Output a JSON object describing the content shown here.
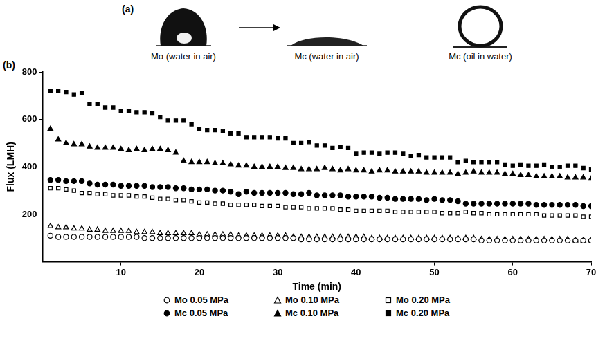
{
  "chart_data": {
    "type": "scatter",
    "x_label": "Time (min)",
    "y_label": "Flux (LMH)",
    "annotations": {
      "panel_labels": [
        "(a)",
        "(b)"
      ],
      "image_captions": [
        "Mo (water in air)",
        "Mc (water in air)",
        "Mc (oil in water)"
      ]
    },
    "xlim": [
      0,
      70
    ],
    "xticks": [
      10,
      20,
      30,
      40,
      50,
      60,
      70
    ],
    "ylim": [
      0,
      800
    ],
    "yticks": [
      200,
      400,
      600,
      800
    ],
    "grid": false,
    "legend": "bottom",
    "x": [
      1,
      2,
      3,
      4,
      5,
      6,
      7,
      8,
      9,
      10,
      11,
      12,
      13,
      14,
      15,
      16,
      17,
      18,
      19,
      20,
      21,
      22,
      23,
      24,
      25,
      26,
      27,
      28,
      29,
      30,
      31,
      32,
      33,
      34,
      35,
      36,
      37,
      38,
      39,
      40,
      41,
      42,
      43,
      44,
      45,
      46,
      47,
      48,
      49,
      50,
      51,
      52,
      53,
      54,
      55,
      56,
      57,
      58,
      59,
      60,
      61,
      62,
      63,
      64,
      65,
      66,
      67,
      68,
      69,
      70
    ],
    "series": [
      {
        "name": "Mo 0.05 MPa",
        "color": "#000000",
        "marker": "open_circle",
        "values": [
          110,
          105,
          105,
          105,
          105,
          105,
          105,
          105,
          105,
          105,
          105,
          105,
          100,
          100,
          100,
          100,
          100,
          100,
          100,
          100,
          100,
          100,
          100,
          100,
          100,
          100,
          100,
          100,
          100,
          100,
          100,
          100,
          95,
          95,
          95,
          95,
          95,
          95,
          95,
          95,
          95,
          95,
          95,
          95,
          95,
          95,
          95,
          95,
          95,
          95,
          95,
          95,
          95,
          95,
          95,
          90,
          90,
          90,
          90,
          90,
          90,
          90,
          90,
          90,
          90,
          90,
          90,
          90,
          90,
          90
        ]
      },
      {
        "name": "Mo 0.10 MPa",
        "color": "#000000",
        "marker": "open_triangle",
        "values": [
          150,
          145,
          145,
          140,
          140,
          135,
          135,
          130,
          130,
          130,
          130,
          125,
          125,
          125,
          120,
          120,
          120,
          120,
          120,
          115,
          115,
          115,
          115,
          115,
          110,
          110,
          110,
          110,
          110,
          110,
          110,
          105,
          105,
          105,
          105,
          105,
          105,
          105,
          105,
          105,
          105,
          100,
          100,
          100,
          100,
          100,
          100,
          100,
          100,
          100,
          100,
          100,
          100,
          100,
          100,
          95,
          95,
          95,
          95,
          95,
          95,
          95,
          95,
          95,
          95,
          95,
          95,
          90,
          90,
          90
        ]
      },
      {
        "name": "Mo 0.20 MPa",
        "color": "#000000",
        "marker": "open_square",
        "values": [
          310,
          310,
          305,
          300,
          290,
          290,
          285,
          285,
          280,
          280,
          280,
          275,
          275,
          270,
          265,
          265,
          260,
          260,
          255,
          250,
          250,
          245,
          245,
          240,
          240,
          240,
          240,
          235,
          235,
          235,
          230,
          230,
          230,
          225,
          225,
          225,
          225,
          220,
          220,
          215,
          215,
          215,
          215,
          215,
          210,
          210,
          210,
          210,
          210,
          210,
          205,
          205,
          205,
          210,
          205,
          205,
          200,
          200,
          200,
          200,
          200,
          200,
          200,
          195,
          195,
          195,
          195,
          195,
          190,
          190
        ]
      },
      {
        "name": "Mc 0.05 MPa",
        "color": "#000000",
        "marker": "circle",
        "values": [
          345,
          345,
          340,
          340,
          340,
          330,
          325,
          325,
          325,
          320,
          320,
          320,
          320,
          315,
          315,
          315,
          310,
          310,
          305,
          305,
          305,
          300,
          300,
          295,
          285,
          295,
          290,
          290,
          290,
          290,
          290,
          285,
          285,
          290,
          280,
          280,
          280,
          280,
          275,
          275,
          275,
          275,
          270,
          270,
          265,
          265,
          265,
          265,
          260,
          265,
          260,
          260,
          255,
          245,
          245,
          245,
          245,
          245,
          245,
          245,
          245,
          245,
          240,
          240,
          240,
          240,
          240,
          240,
          235,
          235
        ]
      },
      {
        "name": "Mc 0.10 MPa",
        "color": "#000000",
        "marker": "triangle",
        "values": [
          560,
          515,
          500,
          495,
          495,
          485,
          480,
          480,
          480,
          475,
          470,
          475,
          470,
          475,
          475,
          470,
          460,
          425,
          420,
          420,
          420,
          415,
          415,
          410,
          405,
          405,
          400,
          400,
          400,
          400,
          395,
          395,
          390,
          390,
          390,
          395,
          390,
          385,
          390,
          385,
          385,
          380,
          385,
          385,
          380,
          380,
          380,
          380,
          375,
          375,
          375,
          375,
          370,
          375,
          380,
          375,
          375,
          375,
          370,
          370,
          365,
          365,
          360,
          360,
          360,
          360,
          355,
          355,
          355,
          350
        ]
      },
      {
        "name": "Mc 0.20 MPa",
        "color": "#000000",
        "marker": "square",
        "values": [
          720,
          720,
          715,
          705,
          710,
          665,
          665,
          650,
          650,
          635,
          635,
          630,
          630,
          625,
          610,
          595,
          595,
          595,
          580,
          560,
          555,
          555,
          550,
          540,
          540,
          525,
          525,
          525,
          525,
          520,
          520,
          500,
          500,
          505,
          490,
          490,
          480,
          485,
          480,
          455,
          460,
          460,
          455,
          460,
          460,
          455,
          445,
          450,
          440,
          440,
          440,
          440,
          420,
          425,
          420,
          420,
          420,
          420,
          410,
          405,
          410,
          405,
          405,
          410,
          400,
          400,
          405,
          405,
          395,
          390
        ]
      }
    ]
  }
}
